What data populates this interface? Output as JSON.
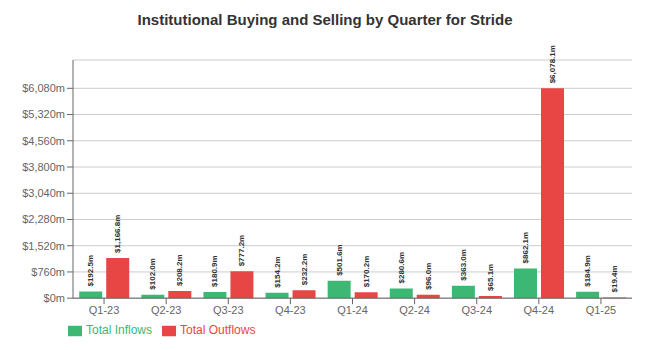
{
  "chart_data": {
    "type": "bar",
    "title": "Institutional Buying and Selling by Quarter for Stride",
    "categories": [
      "Q1-23",
      "Q2-23",
      "Q3-23",
      "Q4-23",
      "Q1-24",
      "Q2-24",
      "Q3-24",
      "Q4-24",
      "Q1-25"
    ],
    "series": [
      {
        "name": "Total Inflows",
        "color": "#3cb874",
        "values": [
          192.5,
          102.0,
          180.9,
          154.2,
          501.6,
          280.6,
          363.0,
          862.1,
          184.9
        ],
        "value_labels": [
          "$192.5m",
          "$102.0m",
          "$180.9m",
          "$154.2m",
          "$501.6m",
          "$280.6m",
          "$363.0m",
          "$862.1m",
          "$184.9m"
        ]
      },
      {
        "name": "Total Outflows",
        "color": "#e84545",
        "values": [
          1166.8,
          208.2,
          777.2,
          232.2,
          170.2,
          96.0,
          65.1,
          6078.1,
          19.4
        ],
        "value_labels": [
          "$1,166.8m",
          "$208.2m",
          "$777.2m",
          "$232.2m",
          "$170.2m",
          "$96.0m",
          "$65.1m",
          "$6,078.1m",
          "$19.4m"
        ]
      }
    ],
    "ylim": [
      0,
      6900
    ],
    "yticks": [
      {
        "value": 0,
        "label": "$0m"
      },
      {
        "value": 760,
        "label": "$760m"
      },
      {
        "value": 1520,
        "label": "$1,520m"
      },
      {
        "value": 2280,
        "label": "$2,280m"
      },
      {
        "value": 3040,
        "label": "$3,040m"
      },
      {
        "value": 3800,
        "label": "$3,800m"
      },
      {
        "value": 4560,
        "label": "$4,560m"
      },
      {
        "value": 5320,
        "label": "$5,320m"
      },
      {
        "value": 6080,
        "label": "$6,080m"
      }
    ],
    "grid": true,
    "legend": "lower left",
    "data_labels": true
  }
}
